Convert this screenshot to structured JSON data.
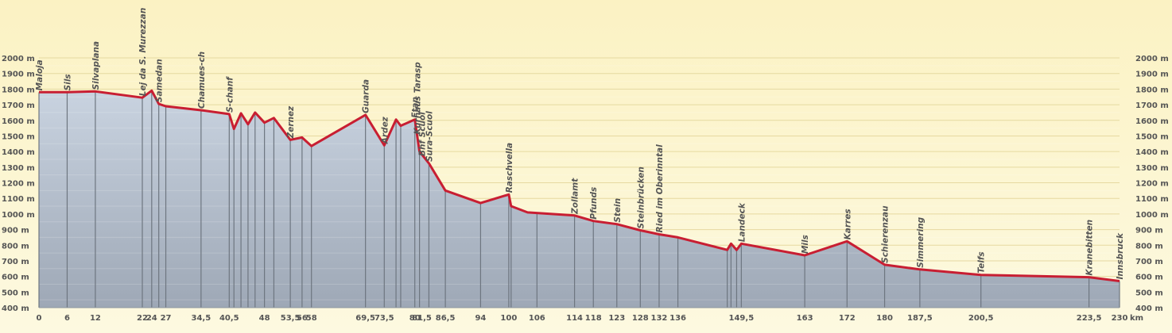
{
  "chart_data": {
    "type": "area",
    "title": "",
    "xlabel": "",
    "ylabel": "",
    "x_unit": "km",
    "y_unit": "m",
    "xlim": [
      0,
      230
    ],
    "ylim": [
      400,
      2000
    ],
    "ytick_step": 100,
    "grid": true,
    "colors": {
      "background_top": "#fbf2c3",
      "background_bottom": "#fdf9e0",
      "fill_top": "#c9d3e0",
      "fill_bottom": "#9ea8b6",
      "line": "#c81e32",
      "marker_line": "#6e7680",
      "grid": "#e6d9a0"
    },
    "x_ticks": [
      "0",
      "6",
      "12",
      "22",
      "24",
      "27",
      "34,5",
      "40,5",
      "48",
      "53,5",
      "56",
      "58",
      "69,5",
      "73,5",
      "80",
      "81,5",
      "86,5",
      "94",
      "100",
      "106",
      "114",
      "118",
      "123",
      "128",
      "132",
      "136",
      "149,5",
      "163",
      "172",
      "180",
      "187,5",
      "200,5",
      "223,5",
      "230"
    ],
    "profile": [
      {
        "x": 0,
        "y": 1780
      },
      {
        "x": 6,
        "y": 1780
      },
      {
        "x": 12,
        "y": 1785
      },
      {
        "x": 22,
        "y": 1745
      },
      {
        "x": 24,
        "y": 1790
      },
      {
        "x": 25.5,
        "y": 1705
      },
      {
        "x": 27,
        "y": 1690
      },
      {
        "x": 34.5,
        "y": 1665
      },
      {
        "x": 40.5,
        "y": 1640
      },
      {
        "x": 41.5,
        "y": 1545
      },
      {
        "x": 43,
        "y": 1645
      },
      {
        "x": 44.5,
        "y": 1575
      },
      {
        "x": 46,
        "y": 1650
      },
      {
        "x": 48,
        "y": 1585
      },
      {
        "x": 50,
        "y": 1615
      },
      {
        "x": 53.5,
        "y": 1475
      },
      {
        "x": 56,
        "y": 1490
      },
      {
        "x": 58,
        "y": 1435
      },
      {
        "x": 69.5,
        "y": 1635
      },
      {
        "x": 73.5,
        "y": 1440
      },
      {
        "x": 76,
        "y": 1605
      },
      {
        "x": 77,
        "y": 1565
      },
      {
        "x": 80,
        "y": 1605
      },
      {
        "x": 81,
        "y": 1400
      },
      {
        "x": 83,
        "y": 1325
      },
      {
        "x": 86.5,
        "y": 1150
      },
      {
        "x": 94,
        "y": 1070
      },
      {
        "x": 100,
        "y": 1125
      },
      {
        "x": 100.5,
        "y": 1050
      },
      {
        "x": 104,
        "y": 1010
      },
      {
        "x": 114,
        "y": 990
      },
      {
        "x": 118,
        "y": 955
      },
      {
        "x": 123,
        "y": 935
      },
      {
        "x": 128,
        "y": 895
      },
      {
        "x": 132,
        "y": 870
      },
      {
        "x": 136,
        "y": 850
      },
      {
        "x": 146.5,
        "y": 770
      },
      {
        "x": 147.3,
        "y": 810
      },
      {
        "x": 148.5,
        "y": 770
      },
      {
        "x": 149.5,
        "y": 810
      },
      {
        "x": 163,
        "y": 735
      },
      {
        "x": 172,
        "y": 825
      },
      {
        "x": 180,
        "y": 675
      },
      {
        "x": 187.5,
        "y": 645
      },
      {
        "x": 200.5,
        "y": 610
      },
      {
        "x": 223.5,
        "y": 595
      },
      {
        "x": 230,
        "y": 570
      }
    ],
    "places": [
      {
        "name": "Maloja",
        "x": 0,
        "y": 1780
      },
      {
        "name": "Sils",
        "x": 6,
        "y": 1780
      },
      {
        "name": "Silvaplana",
        "x": 12,
        "y": 1785
      },
      {
        "name": "Lej da S. Murezzan",
        "x": 22,
        "y": 1745
      },
      {
        "name": "Samedan",
        "x": 25.5,
        "y": 1705
      },
      {
        "name": "Chamues-ch",
        "x": 34.5,
        "y": 1665
      },
      {
        "name": "S-chanf",
        "x": 40.5,
        "y": 1640
      },
      {
        "name": "Zernez",
        "x": 53.5,
        "y": 1475
      },
      {
        "name": "Guarda",
        "x": 69.5,
        "y": 1635
      },
      {
        "name": "Ardez",
        "x": 73.5,
        "y": 1440
      },
      {
        "name": "Ftan",
        "x": 80,
        "y": 1605
      },
      {
        "name": "Kurhaus Tarasp",
        "x": 80.5,
        "y": 1500
      },
      {
        "name": "Bhf Scuol",
        "x": 81.5,
        "y": 1360
      },
      {
        "name": "Sura-Scuol",
        "x": 83,
        "y": 1325
      },
      {
        "name": "Raschvella",
        "x": 100,
        "y": 1125
      },
      {
        "name": "Zollamt",
        "x": 114,
        "y": 990
      },
      {
        "name": "Pfunds",
        "x": 118,
        "y": 955
      },
      {
        "name": "Stein",
        "x": 123,
        "y": 935
      },
      {
        "name": "Steinbrücken",
        "x": 128,
        "y": 895
      },
      {
        "name": "Ried im Oberinntal",
        "x": 132,
        "y": 870
      },
      {
        "name": "Landeck",
        "x": 149.5,
        "y": 810
      },
      {
        "name": "Mils",
        "x": 163,
        "y": 735
      },
      {
        "name": "Karres",
        "x": 172,
        "y": 825
      },
      {
        "name": "Schierenzau",
        "x": 180,
        "y": 675
      },
      {
        "name": "Simmering",
        "x": 187.5,
        "y": 645
      },
      {
        "name": "Telfs",
        "x": 200.5,
        "y": 610
      },
      {
        "name": "Kranebitten",
        "x": 223.5,
        "y": 595
      },
      {
        "name": "Innsbruck",
        "x": 230,
        "y": 570
      }
    ],
    "markers": [
      0,
      6,
      12,
      22,
      24,
      25.5,
      27,
      34.5,
      40.5,
      41.5,
      43,
      44.5,
      46,
      48,
      50,
      53.5,
      56,
      58,
      69.5,
      73.5,
      76,
      77,
      80,
      81,
      83,
      86.5,
      94,
      100,
      100.5,
      106,
      114,
      118,
      123,
      128,
      132,
      136,
      146.5,
      147.3,
      148.5,
      149.5,
      163,
      172,
      180,
      187.5,
      200.5,
      223.5,
      230
    ]
  }
}
